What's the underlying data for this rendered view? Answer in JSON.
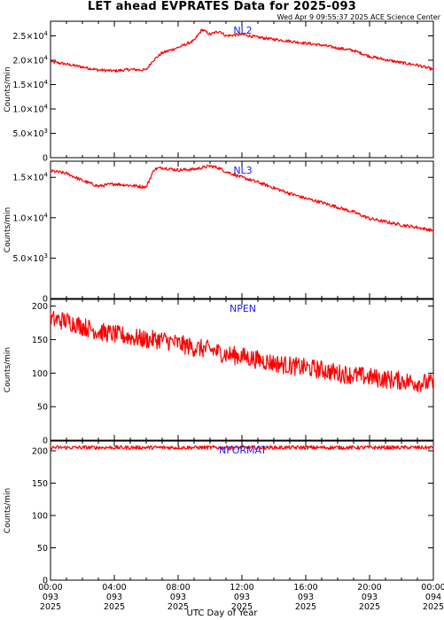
{
  "header": {
    "title": "LET ahead EVPRATES Data for 2025-093",
    "stamp": "Wed Apr  9 09:55:37 2025 ACE Science Center"
  },
  "x_axis": {
    "label": "UTC Day of Year",
    "ticks": [
      {
        "t": 0,
        "time": "00:00",
        "doy": "093",
        "year": "2025"
      },
      {
        "t": 4,
        "time": "04:00",
        "doy": "093",
        "year": "2025"
      },
      {
        "t": 8,
        "time": "08:00",
        "doy": "093",
        "year": "2025"
      },
      {
        "t": 12,
        "time": "12:00",
        "doy": "093",
        "year": "2025"
      },
      {
        "t": 16,
        "time": "16:00",
        "doy": "093",
        "year": "2025"
      },
      {
        "t": 20,
        "time": "20:00",
        "doy": "093",
        "year": "2025"
      },
      {
        "t": 24,
        "time": "00:00",
        "doy": "094",
        "year": "2025"
      }
    ]
  },
  "chart_data": [
    {
      "type": "line",
      "name": "NL2",
      "ylabel": "Counts/min",
      "ylim": [
        0,
        28000
      ],
      "yticks": [
        {
          "v": 0,
          "base": "0",
          "exp": ""
        },
        {
          "v": 5000,
          "base": "5.0×10",
          "exp": "3"
        },
        {
          "v": 10000,
          "base": "1.0×10",
          "exp": "4"
        },
        {
          "v": 15000,
          "base": "1.5×10",
          "exp": "4"
        },
        {
          "v": 20000,
          "base": "2.0×10",
          "exp": "4"
        },
        {
          "v": 25000,
          "base": "2.5×10",
          "exp": "4"
        }
      ],
      "color": "#ff0000",
      "noise": 300,
      "x": [
        0,
        1,
        2,
        3,
        4,
        5,
        6,
        6.4,
        7,
        8,
        9,
        9.5,
        10,
        10.6,
        11,
        12,
        13,
        14,
        15,
        16,
        17,
        18,
        19,
        20,
        21,
        22,
        23,
        24
      ],
      "y": [
        19700,
        19200,
        18600,
        18000,
        17800,
        18100,
        18000,
        19900,
        21500,
        22600,
        24000,
        26300,
        25300,
        26000,
        25000,
        25300,
        24700,
        24300,
        23900,
        23500,
        23100,
        22500,
        22000,
        20800,
        20100,
        19500,
        19000,
        18100
      ]
    },
    {
      "type": "line",
      "name": "NL3",
      "ylabel": "Counts/min",
      "ylim": [
        0,
        17000
      ],
      "yticks": [
        {
          "v": 0,
          "base": "0",
          "exp": ""
        },
        {
          "v": 5000,
          "base": "5.0×10",
          "exp": "3"
        },
        {
          "v": 10000,
          "base": "1.0×10",
          "exp": "4"
        },
        {
          "v": 15000,
          "base": "1.5×10",
          "exp": "4"
        }
      ],
      "color": "#ff0000",
      "noise": 200,
      "x": [
        0,
        1,
        2,
        3,
        4,
        5,
        6,
        6.5,
        7,
        8,
        9,
        10,
        10.5,
        11,
        12,
        13,
        14,
        15,
        16,
        17,
        18,
        19,
        20,
        21,
        22,
        23,
        24
      ],
      "y": [
        15800,
        15500,
        14600,
        13900,
        14200,
        14000,
        13800,
        16000,
        16200,
        15900,
        16000,
        16400,
        16200,
        15700,
        15000,
        14400,
        13700,
        13000,
        12400,
        11900,
        11300,
        10700,
        9900,
        9500,
        9100,
        8800,
        8400
      ]
    },
    {
      "type": "line",
      "name": "NPEN",
      "ylabel": "Counts/min",
      "ylim": [
        0,
        210
      ],
      "yticks": [
        {
          "v": 0,
          "base": "0",
          "exp": ""
        },
        {
          "v": 50,
          "base": "50",
          "exp": ""
        },
        {
          "v": 100,
          "base": "100",
          "exp": ""
        },
        {
          "v": 150,
          "base": "150",
          "exp": ""
        },
        {
          "v": 200,
          "base": "200",
          "exp": ""
        }
      ],
      "color": "#ff0000",
      "noise": 14,
      "x": [
        0,
        1,
        2,
        3,
        4,
        5,
        6,
        7,
        8,
        9,
        10,
        11,
        12,
        13,
        14,
        15,
        16,
        17,
        18,
        19,
        20,
        21,
        22,
        23,
        24
      ],
      "y": [
        180,
        178,
        170,
        162,
        158,
        154,
        150,
        150,
        144,
        138,
        135,
        128,
        125,
        120,
        115,
        111,
        108,
        105,
        100,
        97,
        94,
        91,
        89,
        86,
        85
      ]
    },
    {
      "type": "line",
      "name": "NFORMAT",
      "ylabel": "Counts/min",
      "ylim": [
        0,
        215
      ],
      "yticks": [
        {
          "v": 0,
          "base": "0",
          "exp": ""
        },
        {
          "v": 50,
          "base": "50",
          "exp": ""
        },
        {
          "v": 100,
          "base": "100",
          "exp": ""
        },
        {
          "v": 150,
          "base": "150",
          "exp": ""
        },
        {
          "v": 200,
          "base": "200",
          "exp": ""
        }
      ],
      "color": "#ff0000",
      "noise": 3,
      "x": [
        0,
        24
      ],
      "y": [
        205,
        205
      ]
    }
  ]
}
